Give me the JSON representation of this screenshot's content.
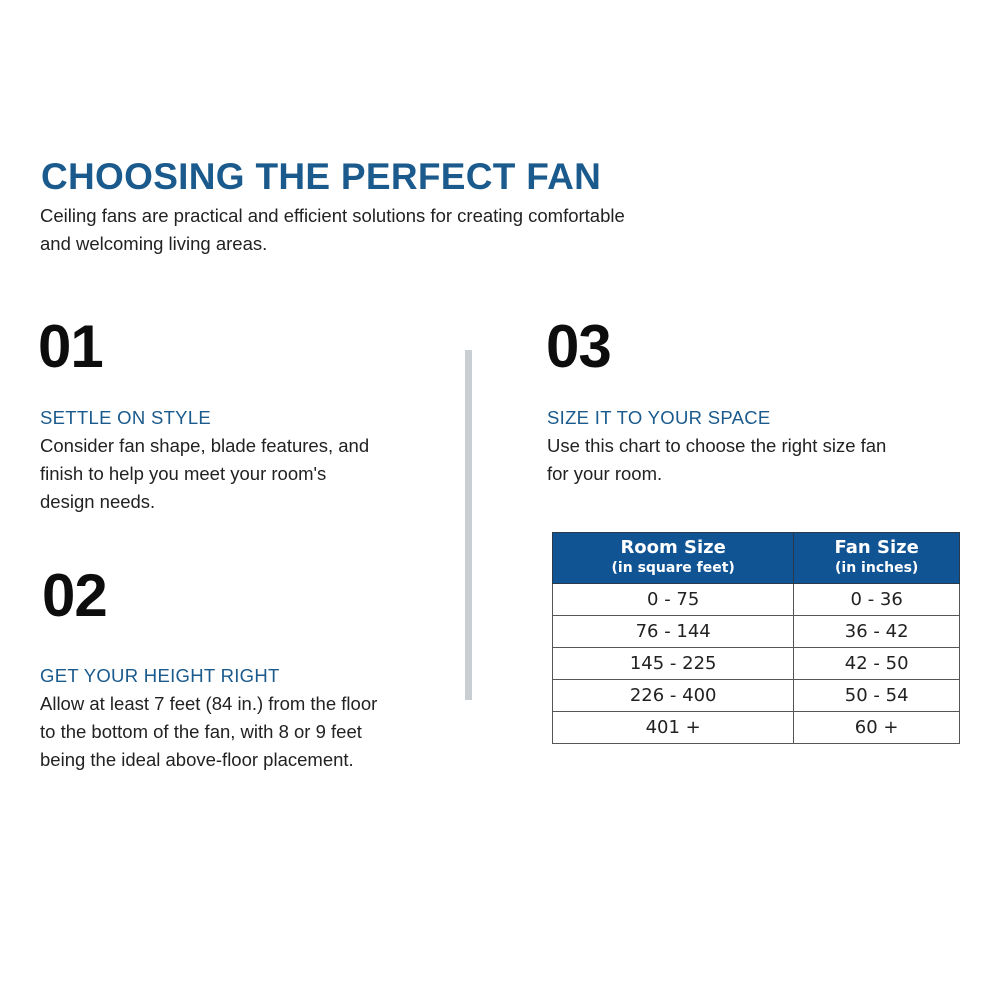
{
  "title": "CHOOSING THE PERFECT FAN",
  "intro": [
    "Ceiling fans are practical and efficient solutions for creating comfortable",
    "and welcoming living areas."
  ],
  "sections": [
    {
      "number": "01",
      "heading": "SETTLE ON STYLE",
      "lines": [
        "Consider fan shape, blade features, and",
        "finish to help you meet your room's",
        "design needs."
      ]
    },
    {
      "number": "02",
      "heading": "GET YOUR HEIGHT RIGHT",
      "lines": [
        "Allow at least 7 feet (84 in.) from the floor",
        "to the bottom of the fan, with 8 or 9 feet",
        "being the ideal above-floor placement."
      ]
    },
    {
      "number": "03",
      "heading": "SIZE IT TO YOUR SPACE",
      "lines": [
        "Use this chart to choose the right size fan",
        "for your room."
      ]
    }
  ],
  "table": {
    "headers": [
      {
        "title": "Room Size",
        "sub": "(in square feet)"
      },
      {
        "title": "Fan Size",
        "sub": "(in inches)"
      }
    ],
    "rows": [
      [
        "0 - 75",
        "0 - 36"
      ],
      [
        "76 - 144",
        "36 - 42"
      ],
      [
        "145 - 225",
        "42 - 50"
      ],
      [
        "226 - 400",
        "50 - 54"
      ],
      [
        "401 +",
        "60 +"
      ]
    ]
  },
  "colors": {
    "accent": "#1a5a8c",
    "table_header": "#115494",
    "divider": "#c9ced3"
  }
}
